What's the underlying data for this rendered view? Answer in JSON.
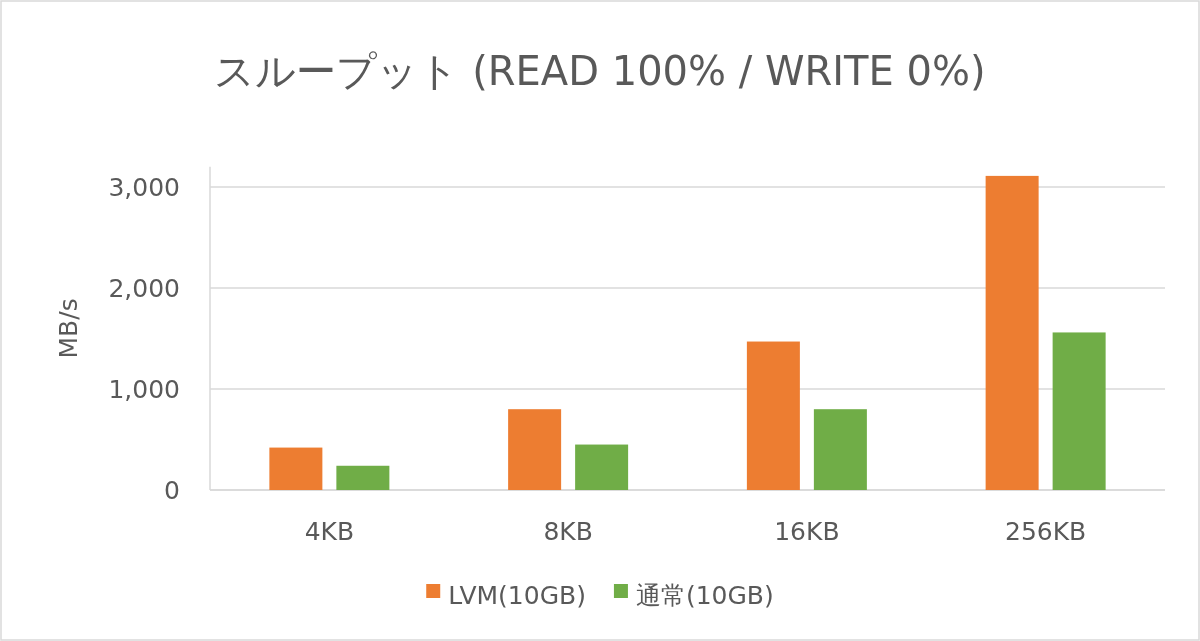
{
  "chart_data": {
    "type": "bar",
    "title": "スループット (READ 100% / WRITE 0%)",
    "ylabel": "MB/s",
    "categories": [
      "4KB",
      "8KB",
      "16KB",
      "256KB"
    ],
    "series": [
      {
        "name": "LVM(10GB)",
        "color": "#ed7d31",
        "values": [
          420,
          800,
          1470,
          3110
        ]
      },
      {
        "name": "通常(10GB)",
        "color": "#70ad47",
        "values": [
          240,
          450,
          800,
          1560
        ]
      }
    ],
    "ylim": [
      0,
      3200
    ],
    "yticks": [
      0,
      {
        "value": 1000,
        "label": "1,000"
      },
      {
        "value": 2000,
        "label": "2,000"
      },
      {
        "value": 3000,
        "label": "3,000"
      }
    ],
    "grid": "y",
    "legend": "bottom"
  }
}
